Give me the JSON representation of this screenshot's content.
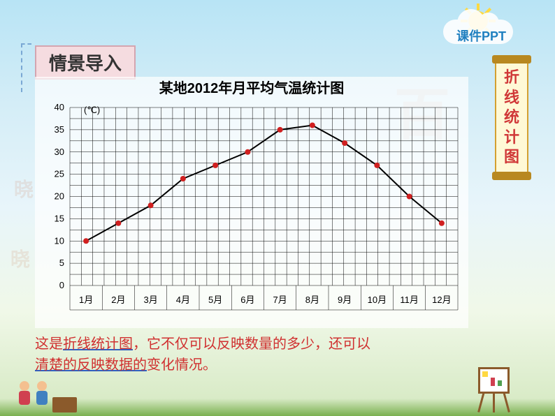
{
  "header": {
    "text": "课件PPT"
  },
  "title_box": {
    "text": "情景导入"
  },
  "side_banner": {
    "chars": [
      "折",
      "线",
      "统",
      "计",
      "图"
    ]
  },
  "chart": {
    "type": "line",
    "title": "某地2012年月平均气温统计图",
    "y_unit": "(℃)",
    "y_ticks": [
      0,
      5,
      10,
      15,
      20,
      25,
      30,
      35,
      40
    ],
    "ylim": [
      0,
      40
    ],
    "x_labels": [
      "1月",
      "2月",
      "3月",
      "4月",
      "5月",
      "6月",
      "7月",
      "8月",
      "9月",
      "10月",
      "11月",
      "12月"
    ],
    "values": [
      10,
      14,
      18,
      24,
      27,
      30,
      35,
      36,
      32,
      27,
      20,
      14
    ],
    "line_color": "#000000",
    "line_width": 2,
    "marker_color": "#d02020",
    "marker_radius": 4,
    "grid_color": "#000000",
    "background_color": "rgba(255,255,255,0.7)",
    "grid_cols": 34,
    "grid_rows": 16,
    "title_fontsize": 20,
    "label_fontsize": 13,
    "tick_fontsize": 13
  },
  "description": {
    "part1": "这是",
    "underline1": "折线统计图",
    "part2": "，它不仅可以反映数量的多少，还可以",
    "underline2": "清楚的反映数据的",
    "part3": "变化情况。"
  },
  "colors": {
    "title_box_bg": "#f5dce0",
    "title_box_border": "#d4a5b0",
    "banner_bg": "#fff9d6",
    "banner_border": "#d4a030",
    "banner_text": "#d03838",
    "description_text": "#d03030",
    "underline_color": "#3060c0",
    "header_text": "#2080c0"
  }
}
